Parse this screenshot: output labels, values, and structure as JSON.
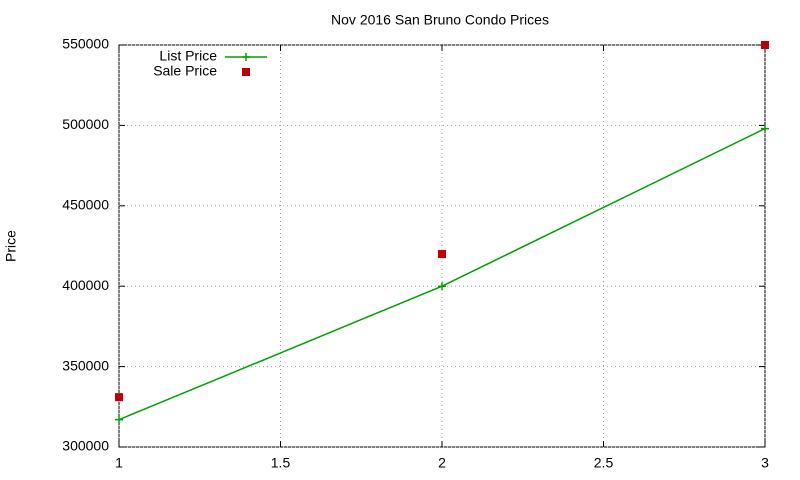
{
  "chart_data": {
    "type": "line",
    "title": "Nov 2016 San Bruno Condo Prices",
    "y_label": "Price",
    "x": [
      1,
      2,
      3
    ],
    "series": [
      {
        "name": "List Price",
        "color": "#00a000",
        "mode": "lines+markers",
        "values": [
          317000,
          400000,
          498000
        ]
      },
      {
        "name": "Sale Price",
        "color": "#c00000",
        "mode": "markers",
        "values": [
          331000,
          420000,
          550000
        ]
      }
    ],
    "xlim": [
      1,
      3
    ],
    "xticks": [
      1,
      1.5,
      2,
      2.5,
      3
    ],
    "ylim": [
      300000,
      550000
    ],
    "yticks": [
      300000,
      350000,
      400000,
      450000,
      500000,
      550000
    ],
    "grid": true,
    "legend": "top-left"
  }
}
